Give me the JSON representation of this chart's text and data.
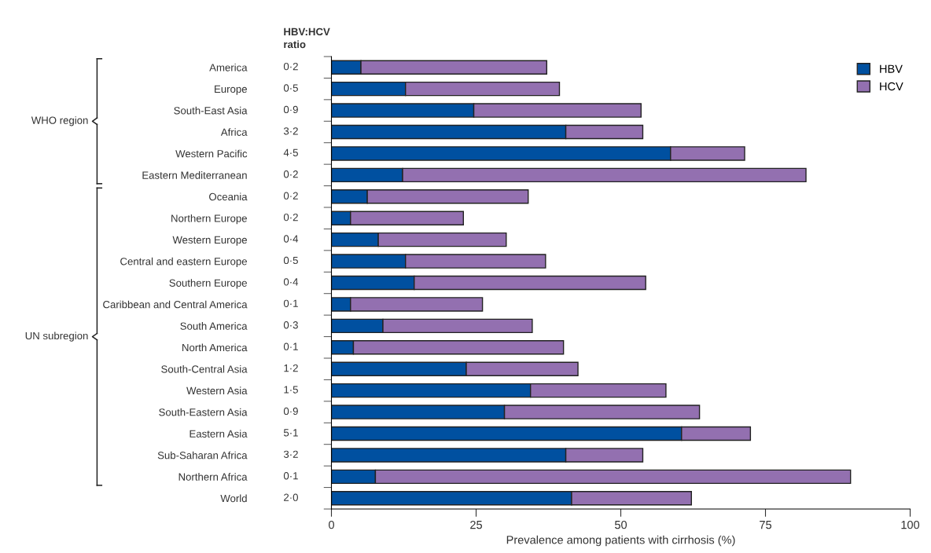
{
  "chart_data": {
    "type": "bar",
    "orientation": "horizontal",
    "stacked": true,
    "xlabel": "Prevalence among patients with cirrhosis (%)",
    "categories": [
      "America",
      "Europe",
      "South-East Asia",
      "Africa",
      "Western Pacific",
      "Eastern Mediterranean",
      "Oceania",
      "Northern Europe",
      "Western Europe",
      "Central and eastern Europe",
      "Southern Europe",
      "Caribbean and Central America",
      "South America",
      "North America",
      "South-Central Asia",
      "Western Asia",
      "South-Eastern Asia",
      "Eastern Asia",
      "Sub-Saharan Africa",
      "Northern Africa",
      "World"
    ],
    "series": [
      {
        "name": "HBV",
        "color": "#0050a0",
        "values": [
          5.1,
          12.8,
          24.6,
          40.5,
          58.6,
          12.3,
          6.2,
          3.3,
          8.1,
          12.8,
          14.3,
          3.3,
          8.9,
          3.8,
          23.3,
          34.4,
          29.9,
          60.5,
          40.5,
          7.6,
          41.5
        ]
      },
      {
        "name": "HCV",
        "color": "#9370b0",
        "values": [
          32.1,
          26.6,
          28.9,
          13.3,
          12.8,
          69.7,
          27.8,
          19.5,
          22.1,
          24.2,
          40.0,
          22.8,
          25.8,
          36.3,
          19.3,
          23.4,
          33.7,
          11.9,
          13.3,
          82.1,
          20.7
        ]
      }
    ],
    "xlim": [
      0,
      100
    ],
    "xticks": [
      0,
      25,
      50,
      75,
      100
    ],
    "grid": false,
    "legend": "top right",
    "annotations": [
      "HBV:HCV\nratio",
      "0·2",
      "0·5",
      "0·9",
      "3·2",
      "4·5",
      "0·2",
      "0·2",
      "0·2",
      "0·4",
      "0·5",
      "0·4",
      "0·1",
      "0·3",
      "0·1",
      "1·2",
      "1·5",
      "0·9",
      "5·1",
      "3·2",
      "0·1",
      "2·0",
      "WHO region",
      "UN subregion"
    ]
  }
}
